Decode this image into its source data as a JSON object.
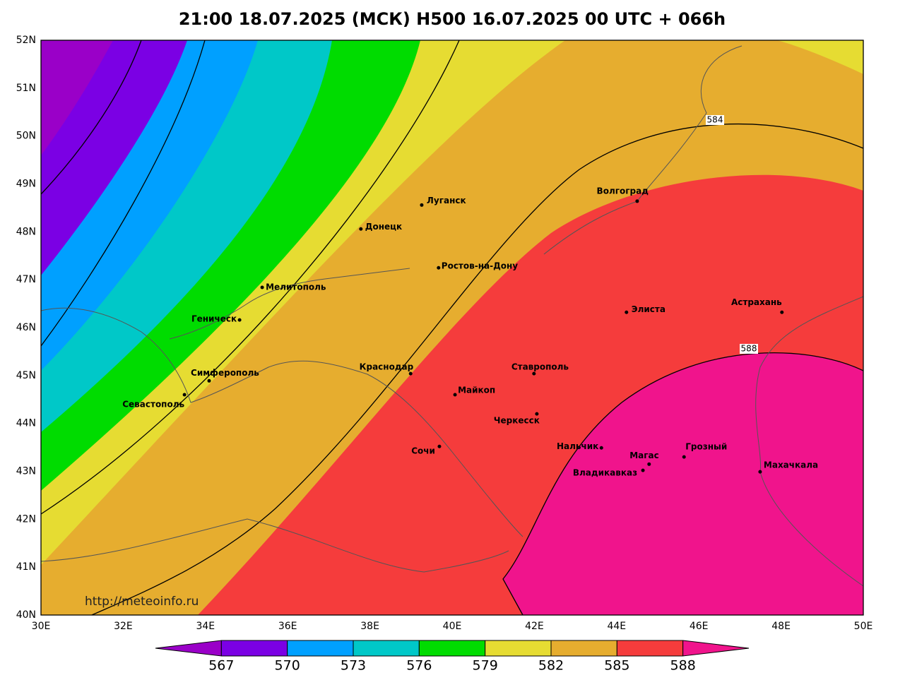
{
  "map": {
    "title": "21:00 18.07.2025 (МСК) H500  16.07.2025 00 UTC + 066h",
    "lonlim": [
      30,
      50
    ],
    "latlim": [
      40,
      52
    ],
    "lonticks": [
      {
        "value": 30,
        "label": "30E"
      },
      {
        "value": 32,
        "label": "32E"
      },
      {
        "value": 34,
        "label": "34E"
      },
      {
        "value": 36,
        "label": "36E"
      },
      {
        "value": 38,
        "label": "38E"
      },
      {
        "value": 40,
        "label": "40E"
      },
      {
        "value": 42,
        "label": "42E"
      },
      {
        "value": 44,
        "label": "44E"
      },
      {
        "value": 46,
        "label": "46E"
      },
      {
        "value": 48,
        "label": "48E"
      },
      {
        "value": 50,
        "label": "50E"
      }
    ],
    "latticks": [
      {
        "value": 40,
        "label": "40N"
      },
      {
        "value": 41,
        "label": "41N"
      },
      {
        "value": 42,
        "label": "42N"
      },
      {
        "value": 43,
        "label": "43N"
      },
      {
        "value": 44,
        "label": "44N"
      },
      {
        "value": 45,
        "label": "45N"
      },
      {
        "value": 46,
        "label": "46N"
      },
      {
        "value": 47,
        "label": "47N"
      },
      {
        "value": 48,
        "label": "48N"
      },
      {
        "value": 49,
        "label": "49N"
      },
      {
        "value": 50,
        "label": "50N"
      },
      {
        "value": 51,
        "label": "51N"
      },
      {
        "value": 52,
        "label": "52N"
      }
    ],
    "cities": [
      {
        "name": "Луганск",
        "lon": 39.26,
        "lat": 48.56
      },
      {
        "name": "Донецк",
        "lon": 37.78,
        "lat": 48.06
      },
      {
        "name": "Волгоград",
        "lon": 44.5,
        "lat": 48.64
      },
      {
        "name": "Ростов-на-Дону",
        "lon": 39.67,
        "lat": 47.25
      },
      {
        "name": "Мелитополь",
        "lon": 35.38,
        "lat": 46.84
      },
      {
        "name": "Геническ",
        "lon": 34.83,
        "lat": 46.16
      },
      {
        "name": "Элиста",
        "lon": 44.24,
        "lat": 46.32
      },
      {
        "name": "Астрахань",
        "lon": 48.02,
        "lat": 46.32
      },
      {
        "name": "Симферополь",
        "lon": 34.09,
        "lat": 44.89
      },
      {
        "name": "Севастополь",
        "lon": 33.49,
        "lat": 44.6
      },
      {
        "name": "Краснодар",
        "lon": 38.99,
        "lat": 45.04
      },
      {
        "name": "Ставрополь",
        "lon": 41.99,
        "lat": 45.04
      },
      {
        "name": "Майкоп",
        "lon": 40.07,
        "lat": 44.6
      },
      {
        "name": "Черкесск",
        "lon": 42.06,
        "lat": 44.2
      },
      {
        "name": "Сочи",
        "lon": 39.69,
        "lat": 43.52
      },
      {
        "name": "Нальчик",
        "lon": 43.63,
        "lat": 43.49
      },
      {
        "name": "Магас",
        "lon": 44.79,
        "lat": 43.15
      },
      {
        "name": "Грозный",
        "lon": 45.64,
        "lat": 43.3
      },
      {
        "name": "Владикавказ",
        "lon": 44.64,
        "lat": 43.02
      },
      {
        "name": "Махачкала",
        "lon": 47.49,
        "lat": 42.99
      }
    ],
    "contour_labels": [
      "584",
      "588"
    ],
    "watermark": "http://meteoinfo.ru",
    "colorbar": {
      "levels": [
        567,
        570,
        573,
        576,
        579,
        582,
        585,
        588
      ],
      "colors": [
        "#9a00c8",
        "#7b00e4",
        "#00a0ff",
        "#00c8c8",
        "#00dc00",
        "#e6dc32",
        "#e6ad2f",
        "#f53c3c",
        "#f0148c"
      ]
    }
  }
}
